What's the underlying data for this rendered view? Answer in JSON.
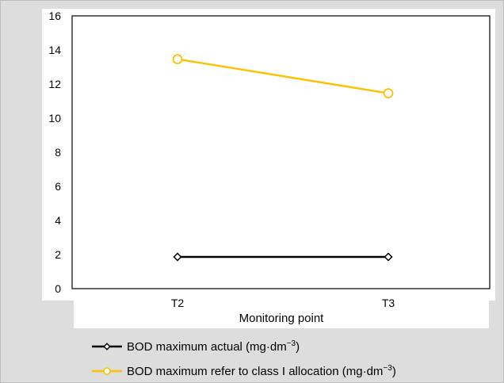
{
  "chart_data": {
    "type": "line",
    "categories": [
      "T2",
      "T3"
    ],
    "xlabel": "Monitoring point",
    "ylabel": "",
    "ylim": [
      0,
      16
    ],
    "yticks": [
      0,
      2,
      4,
      6,
      8,
      10,
      12,
      14,
      16
    ],
    "grid": false,
    "legend_position": "bottom",
    "series": [
      {
        "name": "BOD maximum actual (mg·dm",
        "name_sup": "−3",
        "name_suffix": ")",
        "values": [
          2.0,
          2.0
        ],
        "color": "#000000",
        "marker": "diamond"
      },
      {
        "name": "BOD maximum refer to class I allocation (mg·dm",
        "name_sup": "−3",
        "name_suffix": ")",
        "values": [
          13.6,
          11.6
        ],
        "color": "#ffc000",
        "marker": "circle"
      }
    ]
  }
}
